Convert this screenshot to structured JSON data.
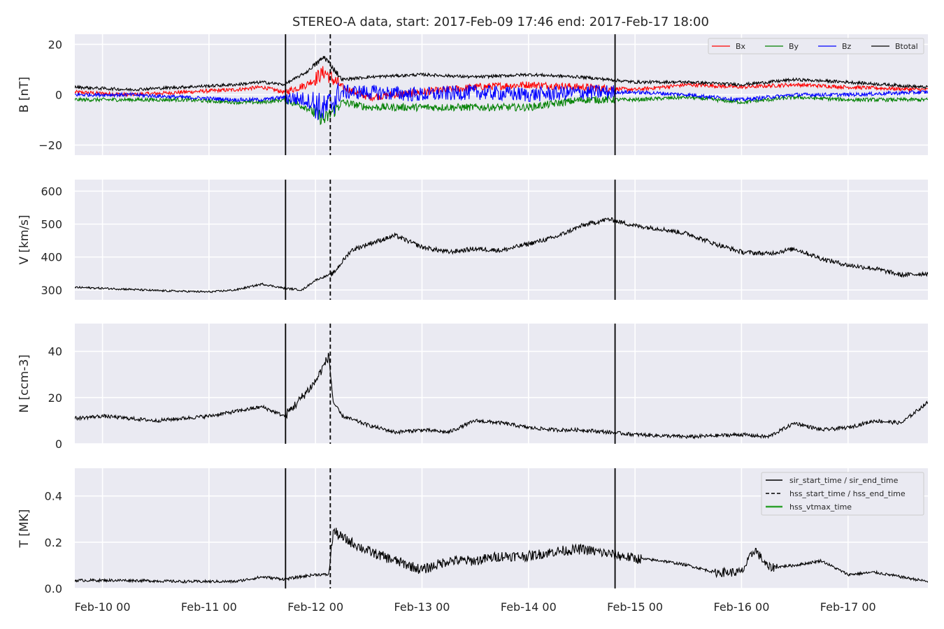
{
  "title": "STEREO-A data, start: 2017-Feb-09 17:46  end: 2017-Feb-17 18:00",
  "chart_data": [
    {
      "type": "line",
      "panel": "B",
      "ylabel": "B [nT]",
      "ylim": [
        -24,
        24
      ],
      "yticks": [
        "20",
        "0",
        "−20"
      ],
      "ytick_values": [
        20,
        0,
        -20
      ],
      "x_range": [
        "2017-02-09 17:46",
        "2017-02-17 18:00"
      ],
      "grid": true,
      "legend": {
        "placement": "top-right",
        "entries": [
          "Bx",
          "By",
          "Bz",
          "Btotal"
        ]
      },
      "series": [
        {
          "name": "Bx",
          "color": "#ff0000",
          "x": [
            "2017-02-09 18:00",
            "2017-02-10 06:00",
            "2017-02-10 18:00",
            "2017-02-11 06:00",
            "2017-02-11 12:00",
            "2017-02-11 17:00",
            "2017-02-11 22:00",
            "2017-02-12 02:00",
            "2017-02-12 06:00",
            "2017-02-12 12:00",
            "2017-02-13 00:00",
            "2017-02-13 12:00",
            "2017-02-14 00:00",
            "2017-02-14 12:00",
            "2017-02-15 00:00",
            "2017-02-15 12:00",
            "2017-02-16 00:00",
            "2017-02-16 12:00",
            "2017-02-17 00:00",
            "2017-02-17 17:00"
          ],
          "values": [
            1,
            0,
            1,
            2,
            3,
            1,
            4,
            9,
            3,
            -1,
            1,
            3,
            4,
            3,
            2,
            4,
            3,
            4,
            3,
            2
          ]
        },
        {
          "name": "By",
          "color": "#008000",
          "x": [
            "2017-02-09 18:00",
            "2017-02-10 06:00",
            "2017-02-10 18:00",
            "2017-02-11 06:00",
            "2017-02-11 12:00",
            "2017-02-11 17:00",
            "2017-02-11 22:00",
            "2017-02-12 02:00",
            "2017-02-12 06:00",
            "2017-02-12 12:00",
            "2017-02-13 00:00",
            "2017-02-13 12:00",
            "2017-02-14 00:00",
            "2017-02-14 12:00",
            "2017-02-15 00:00",
            "2017-02-15 12:00",
            "2017-02-16 00:00",
            "2017-02-16 12:00",
            "2017-02-17 00:00",
            "2017-02-17 17:00"
          ],
          "values": [
            -2,
            -2,
            -2,
            -3,
            -3,
            -2,
            -5,
            -10,
            -3,
            -5,
            -5,
            -5,
            -5,
            -2,
            -2,
            -1,
            -3,
            -1,
            -2,
            -2
          ]
        },
        {
          "name": "Bz",
          "color": "#0000ff",
          "x": [
            "2017-02-09 18:00",
            "2017-02-10 06:00",
            "2017-02-10 18:00",
            "2017-02-11 06:00",
            "2017-02-11 12:00",
            "2017-02-11 17:00",
            "2017-02-11 22:00",
            "2017-02-12 02:00",
            "2017-02-12 06:00",
            "2017-02-12 12:00",
            "2017-02-13 00:00",
            "2017-02-13 12:00",
            "2017-02-14 00:00",
            "2017-02-14 12:00",
            "2017-02-15 00:00",
            "2017-02-15 12:00",
            "2017-02-16 00:00",
            "2017-02-16 12:00",
            "2017-02-17 00:00",
            "2017-02-17 17:00"
          ],
          "values": [
            0,
            0,
            -1,
            -2,
            -2,
            -1,
            -2,
            -6,
            1,
            1,
            0,
            1,
            0,
            1,
            1,
            0,
            -2,
            0,
            0,
            1
          ]
        },
        {
          "name": "Btotal",
          "color": "#000000",
          "x": [
            "2017-02-09 18:00",
            "2017-02-10 06:00",
            "2017-02-10 18:00",
            "2017-02-11 06:00",
            "2017-02-11 12:00",
            "2017-02-11 17:00",
            "2017-02-11 22:00",
            "2017-02-12 02:00",
            "2017-02-12 06:00",
            "2017-02-12 12:00",
            "2017-02-13 00:00",
            "2017-02-13 12:00",
            "2017-02-14 00:00",
            "2017-02-14 12:00",
            "2017-02-15 00:00",
            "2017-02-15 12:00",
            "2017-02-16 00:00",
            "2017-02-16 12:00",
            "2017-02-17 00:00",
            "2017-02-17 17:00"
          ],
          "values": [
            3,
            2,
            3,
            4,
            5,
            4,
            9,
            15,
            6,
            7,
            8,
            7,
            8,
            7,
            5,
            5,
            4,
            6,
            5,
            3
          ]
        }
      ]
    },
    {
      "type": "line",
      "panel": "V",
      "ylabel": "V [km/s]",
      "ylim": [
        270,
        635
      ],
      "yticks": [
        "600",
        "500",
        "400",
        "300"
      ],
      "ytick_values": [
        600,
        500,
        400,
        300
      ],
      "grid": true,
      "series": [
        {
          "name": "",
          "color": "#000000",
          "x": [
            "2017-02-09 17:46",
            "2017-02-10 06:00",
            "2017-02-10 12:00",
            "2017-02-10 18:00",
            "2017-02-11 00:00",
            "2017-02-11 06:00",
            "2017-02-11 12:00",
            "2017-02-11 17:00",
            "2017-02-11 21:00",
            "2017-02-12 00:00",
            "2017-02-12 04:00",
            "2017-02-12 08:00",
            "2017-02-12 12:00",
            "2017-02-12 18:00",
            "2017-02-13 00:00",
            "2017-02-13 06:00",
            "2017-02-13 12:00",
            "2017-02-13 18:00",
            "2017-02-14 00:00",
            "2017-02-14 06:00",
            "2017-02-14 12:00",
            "2017-02-14 18:00",
            "2017-02-15 00:00",
            "2017-02-15 06:00",
            "2017-02-15 12:00",
            "2017-02-15 18:00",
            "2017-02-16 00:00",
            "2017-02-16 06:00",
            "2017-02-16 12:00",
            "2017-02-16 18:00",
            "2017-02-17 00:00",
            "2017-02-17 06:00",
            "2017-02-17 12:00",
            "2017-02-17 18:00"
          ],
          "values": [
            308,
            302,
            298,
            296,
            294,
            300,
            318,
            305,
            300,
            330,
            350,
            420,
            440,
            465,
            430,
            415,
            425,
            420,
            440,
            460,
            495,
            515,
            495,
            485,
            470,
            440,
            415,
            410,
            425,
            395,
            375,
            365,
            345,
            350
          ]
        }
      ]
    },
    {
      "type": "line",
      "panel": "N",
      "ylabel": "N [ccm-3]",
      "ylim": [
        0,
        52
      ],
      "yticks": [
        "40",
        "20",
        "0"
      ],
      "ytick_values": [
        40,
        20,
        0
      ],
      "grid": true,
      "series": [
        {
          "name": "",
          "color": "#000000",
          "x": [
            "2017-02-09 17:46",
            "2017-02-10 00:00",
            "2017-02-10 06:00",
            "2017-02-10 12:00",
            "2017-02-10 18:00",
            "2017-02-11 00:00",
            "2017-02-11 06:00",
            "2017-02-11 12:00",
            "2017-02-11 17:00",
            "2017-02-11 20:00",
            "2017-02-12 00:00",
            "2017-02-12 03:00",
            "2017-02-12 04:00",
            "2017-02-12 06:00",
            "2017-02-12 12:00",
            "2017-02-12 18:00",
            "2017-02-13 00:00",
            "2017-02-13 06:00",
            "2017-02-13 12:00",
            "2017-02-13 18:00",
            "2017-02-14 00:00",
            "2017-02-14 06:00",
            "2017-02-14 12:00",
            "2017-02-14 18:00",
            "2017-02-15 00:00",
            "2017-02-15 12:00",
            "2017-02-16 00:00",
            "2017-02-16 06:00",
            "2017-02-16 12:00",
            "2017-02-16 18:00",
            "2017-02-17 00:00",
            "2017-02-17 06:00",
            "2017-02-17 12:00",
            "2017-02-17 18:00"
          ],
          "values": [
            11,
            12,
            11,
            10,
            11,
            12,
            14,
            16,
            12,
            18,
            27,
            38,
            18,
            12,
            8,
            5,
            6,
            5,
            10,
            9,
            7,
            6,
            6,
            5,
            4,
            3,
            4,
            3,
            9,
            6,
            7,
            10,
            9,
            18
          ]
        }
      ]
    },
    {
      "type": "line",
      "panel": "T",
      "ylabel": "T [MK]",
      "xlabel": "",
      "ylim": [
        0.0,
        0.52
      ],
      "yticks": [
        "0.4",
        "0.2",
        "0.0"
      ],
      "ytick_values": [
        0.4,
        0.2,
        0.0
      ],
      "xticks": [
        "Feb-10 00",
        "Feb-11 00",
        "Feb-12 00",
        "Feb-13 00",
        "Feb-14 00",
        "Feb-15 00",
        "Feb-16 00",
        "Feb-17 00"
      ],
      "xtick_values": [
        "2017-02-10 00:00",
        "2017-02-11 00:00",
        "2017-02-12 00:00",
        "2017-02-13 00:00",
        "2017-02-14 00:00",
        "2017-02-15 00:00",
        "2017-02-16 00:00",
        "2017-02-17 00:00"
      ],
      "grid": true,
      "legend": {
        "placement": "top-right",
        "entries": [
          "sir_start_time / sir_end_time",
          "hss_start_time / hss_end_time",
          "hss_vtmax_time"
        ]
      },
      "series": [
        {
          "name": "",
          "color": "#000000",
          "x": [
            "2017-02-09 17:46",
            "2017-02-10 06:00",
            "2017-02-10 18:00",
            "2017-02-11 06:00",
            "2017-02-11 12:00",
            "2017-02-11 17:00",
            "2017-02-12 00:00",
            "2017-02-12 03:00",
            "2017-02-12 04:00",
            "2017-02-12 06:00",
            "2017-02-12 12:00",
            "2017-02-12 18:00",
            "2017-02-13 00:00",
            "2017-02-13 06:00",
            "2017-02-13 12:00",
            "2017-02-13 18:00",
            "2017-02-14 00:00",
            "2017-02-14 06:00",
            "2017-02-14 12:00",
            "2017-02-14 18:00",
            "2017-02-15 00:00",
            "2017-02-15 06:00",
            "2017-02-15 12:00",
            "2017-02-15 18:00",
            "2017-02-16 00:00",
            "2017-02-16 03:00",
            "2017-02-16 06:00",
            "2017-02-16 12:00",
            "2017-02-16 18:00",
            "2017-02-17 00:00",
            "2017-02-17 06:00",
            "2017-02-17 12:00",
            "2017-02-17 18:00"
          ],
          "values": [
            0.035,
            0.035,
            0.03,
            0.03,
            0.05,
            0.04,
            0.06,
            0.06,
            0.25,
            0.22,
            0.16,
            0.12,
            0.08,
            0.12,
            0.12,
            0.14,
            0.14,
            0.16,
            0.17,
            0.15,
            0.13,
            0.12,
            0.1,
            0.07,
            0.07,
            0.17,
            0.09,
            0.1,
            0.12,
            0.06,
            0.07,
            0.05,
            0.03
          ]
        }
      ]
    }
  ],
  "event_markers": {
    "sir_start_time": "2017-02-11 17:15",
    "hss_start_time": "2017-02-12 03:20",
    "sir_end_time": "2017-02-14 19:30",
    "colors": {
      "sir": "#000000",
      "hss": "#000000",
      "vtmax": "#2ca02c"
    }
  },
  "style": {
    "panel_bg": "#eaeaf2",
    "grid": "#ffffff"
  }
}
